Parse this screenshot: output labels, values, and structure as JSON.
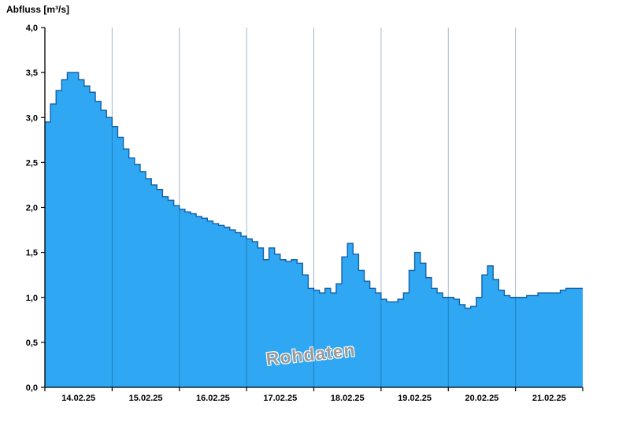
{
  "title": "Abfluss [m³/s]",
  "watermark": "Rohdaten",
  "colors": {
    "area_fill": "#2fa7f2",
    "area_outline": "#1260a8",
    "grid_line": "rgba(15,60,110,0.38)",
    "axis": "#000000",
    "watermark": "#9b9b9b",
    "background": "#ffffff"
  },
  "chart_data": {
    "type": "area",
    "title": "Abfluss [m³/s]",
    "ylabel": "Abfluss [m³/s]",
    "xlabel": "",
    "ylim": [
      0,
      4
    ],
    "ytick_step": 0.5,
    "ytick_labels": [
      "0,0",
      "0,5",
      "1,0",
      "1,5",
      "2,0",
      "2,5",
      "3,0",
      "3,5",
      "4,0"
    ],
    "x_day_labels": [
      "14.02.25",
      "15.02.25",
      "16.02.25",
      "17.02.25",
      "18.02.25",
      "19.02.25",
      "20.02.25",
      "21.02.25"
    ],
    "days": 8,
    "points_per_day": 12,
    "step_hours": 2,
    "grid": "vertical-day-boundaries",
    "legend": "none",
    "annotations": [
      "Rohdaten"
    ],
    "values": [
      2.95,
      3.15,
      3.3,
      3.42,
      3.5,
      3.5,
      3.42,
      3.35,
      3.28,
      3.18,
      3.08,
      3.0,
      2.9,
      2.78,
      2.65,
      2.55,
      2.48,
      2.4,
      2.32,
      2.25,
      2.2,
      2.12,
      2.08,
      2.02,
      1.98,
      1.95,
      1.93,
      1.9,
      1.88,
      1.85,
      1.82,
      1.8,
      1.78,
      1.75,
      1.72,
      1.68,
      1.65,
      1.62,
      1.55,
      1.42,
      1.55,
      1.48,
      1.42,
      1.4,
      1.42,
      1.38,
      1.25,
      1.1,
      1.08,
      1.05,
      1.1,
      1.05,
      1.15,
      1.45,
      1.6,
      1.48,
      1.3,
      1.18,
      1.1,
      1.05,
      0.98,
      0.95,
      0.95,
      0.98,
      1.05,
      1.3,
      1.5,
      1.38,
      1.22,
      1.1,
      1.05,
      1.0,
      1.0,
      0.98,
      0.92,
      0.88,
      0.9,
      1.0,
      1.25,
      1.35,
      1.2,
      1.08,
      1.02,
      1.0,
      1.0,
      1.0,
      1.02,
      1.02,
      1.05,
      1.05,
      1.05,
      1.05,
      1.08,
      1.1,
      1.1,
      1.1
    ]
  }
}
